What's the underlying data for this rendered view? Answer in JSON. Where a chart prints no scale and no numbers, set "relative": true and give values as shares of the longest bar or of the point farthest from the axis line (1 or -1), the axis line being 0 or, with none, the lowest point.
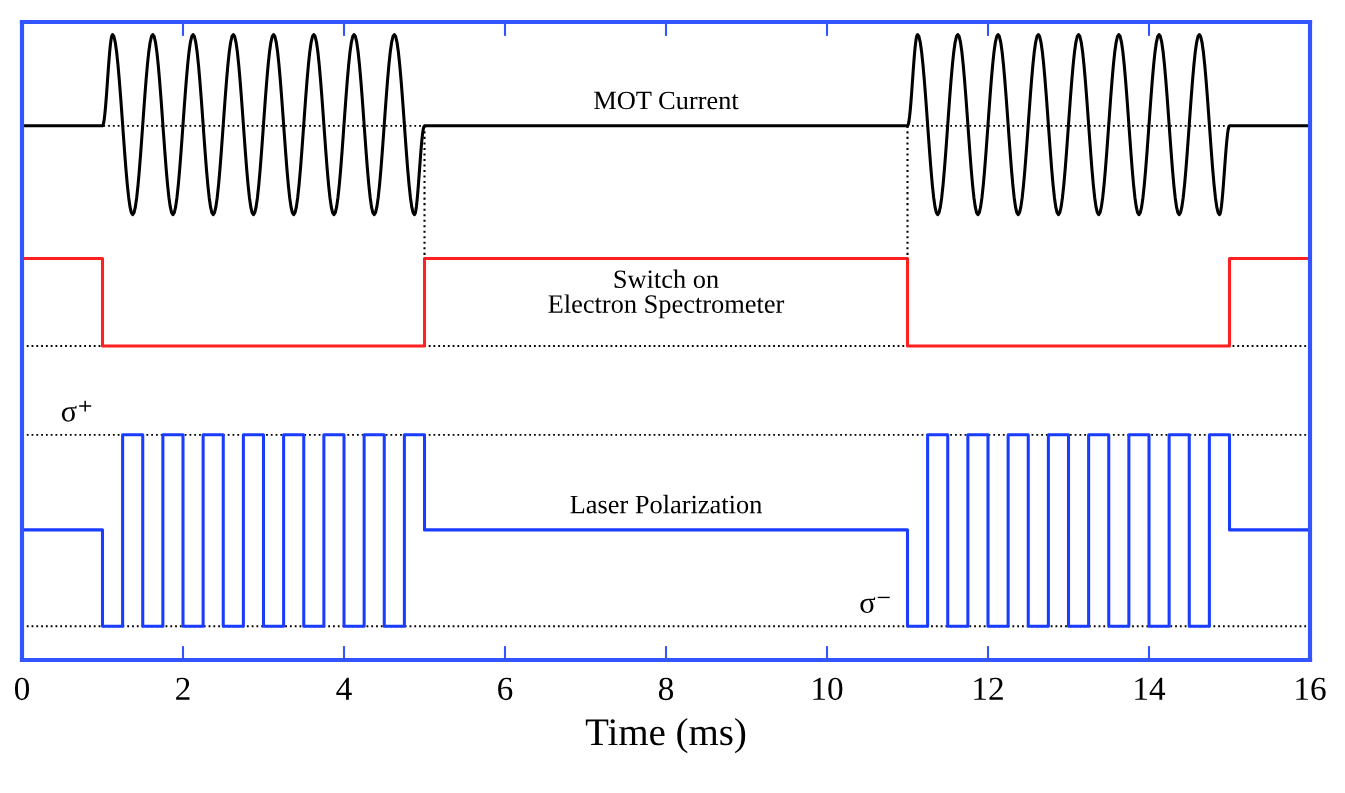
{
  "chart_data": {
    "type": "line",
    "relative": true,
    "xlabel": "Time (ms)",
    "xlim": [
      0,
      16
    ],
    "xticks": [
      0,
      2,
      4,
      6,
      8,
      10,
      12,
      14,
      16
    ],
    "grid": false,
    "legend": false,
    "marker": "none",
    "series": [
      {
        "name": "MOT Current",
        "color": "#000000",
        "x": [
          0,
          1,
          1.125,
          1.375,
          1.625,
          1.875,
          2.125,
          2.375,
          2.625,
          2.875,
          3.125,
          3.375,
          3.625,
          3.875,
          4.125,
          4.375,
          4.625,
          4.875,
          5,
          11,
          11.125,
          11.375,
          11.625,
          11.875,
          12.125,
          12.375,
          12.625,
          12.875,
          13.125,
          13.375,
          13.625,
          13.875,
          14.125,
          14.375,
          14.625,
          14.875,
          15,
          16
        ],
        "values": [
          0.854,
          0.854,
          1,
          0.712,
          1,
          0.712,
          1,
          0.712,
          1,
          0.712,
          1,
          0.712,
          1,
          0.712,
          1,
          0.712,
          1,
          0.712,
          0.854,
          0.854,
          1,
          0.712,
          1,
          0.712,
          1,
          0.712,
          1,
          0.712,
          1,
          0.712,
          1,
          0.712,
          1,
          0.712,
          1,
          0.712,
          0.854,
          0.854
        ]
      },
      {
        "name": "Switch on\nElectron Spectrometer",
        "type": "step",
        "color": "#ff2020",
        "x": [
          0,
          1,
          5,
          11,
          15,
          16
        ],
        "values": [
          0.642,
          0.502,
          0.642,
          0.502,
          0.642,
          0.642
        ]
      },
      {
        "name": "Laser Polarization",
        "type": "step",
        "color": "#1a3cff",
        "x": [
          0,
          1,
          1.25,
          1.5,
          1.75,
          2,
          2.25,
          2.5,
          2.75,
          3,
          3.25,
          3.5,
          3.75,
          4,
          4.25,
          4.5,
          4.75,
          5,
          11,
          11.25,
          11.5,
          11.75,
          12,
          12.25,
          12.5,
          12.75,
          13,
          13.25,
          13.5,
          13.75,
          14,
          14.25,
          14.5,
          14.75,
          15,
          16
        ],
        "values": [
          0.208,
          0.054,
          0.36,
          0.054,
          0.36,
          0.054,
          0.36,
          0.054,
          0.36,
          0.054,
          0.36,
          0.054,
          0.36,
          0.054,
          0.36,
          0.054,
          0.36,
          0.208,
          0.054,
          0.36,
          0.054,
          0.36,
          0.054,
          0.36,
          0.054,
          0.36,
          0.054,
          0.36,
          0.054,
          0.36,
          0.054,
          0.36,
          0.054,
          0.36,
          0.208,
          0.208
        ]
      },
      {
        "color": "#000000",
        "line_style": "dotted",
        "x": [
          5,
          5
        ],
        "values": [
          0.854,
          0.642
        ]
      },
      {
        "color": "#000000",
        "line_style": "dotted",
        "x": [
          11,
          11
        ],
        "values": [
          0.854,
          0.642
        ]
      }
    ],
    "ref_lines": [
      {
        "axis": "y",
        "value": 0.854,
        "color": "#000000",
        "line_style": "dotted"
      },
      {
        "axis": "y",
        "value": 0.502,
        "color": "#000000",
        "line_style": "dotted"
      },
      {
        "axis": "y",
        "value": 0.36,
        "color": "#000000",
        "line_style": "dotted",
        "label": "σ⁺"
      },
      {
        "axis": "y",
        "value": 0.054,
        "color": "#000000",
        "line_style": "dotted",
        "label": "σ⁻"
      }
    ]
  }
}
